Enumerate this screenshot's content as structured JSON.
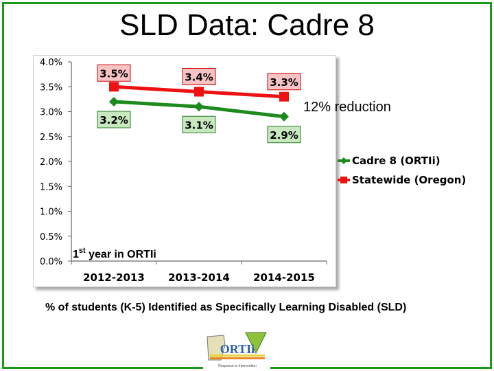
{
  "title": "SLD Data: Cadre 8",
  "caption": "% of students (K-5) Identified as Specifically Learning Disabled (SLD)",
  "annotations": {
    "reduction": "12% reduction",
    "first_year_prefix": "1",
    "first_year_sup": "st",
    "first_year_suffix": " year in ORTIi"
  },
  "logo": {
    "text": "ORTIi",
    "tagline": "Response to Intervention"
  },
  "colors": {
    "frame": "#1a9a1a",
    "cadre": "#1c8a1c",
    "statewide": "#ee1111"
  },
  "chart_data": {
    "type": "line",
    "categories": [
      "2012-2013",
      "2013-2014",
      "2014-2015"
    ],
    "yticks": [
      "4.0%",
      "3.5%",
      "3.0%",
      "2.5%",
      "2.0%",
      "1.5%",
      "1.0%",
      "0.5%",
      "0.0%"
    ],
    "ylim": [
      0,
      4.0
    ],
    "grid": false,
    "legend_position": "right",
    "series": [
      {
        "name": "Cadre 8 (ORTIi)",
        "values": [
          3.2,
          3.1,
          2.9
        ],
        "labels": [
          "3.2%",
          "3.1%",
          "2.9%"
        ],
        "color": "#1c8a1c",
        "marker": "diamond"
      },
      {
        "name": "Statewide (Oregon)",
        "values": [
          3.5,
          3.4,
          3.3
        ],
        "labels": [
          "3.5%",
          "3.4%",
          "3.3%"
        ],
        "color": "#ee1111",
        "marker": "square"
      }
    ]
  }
}
